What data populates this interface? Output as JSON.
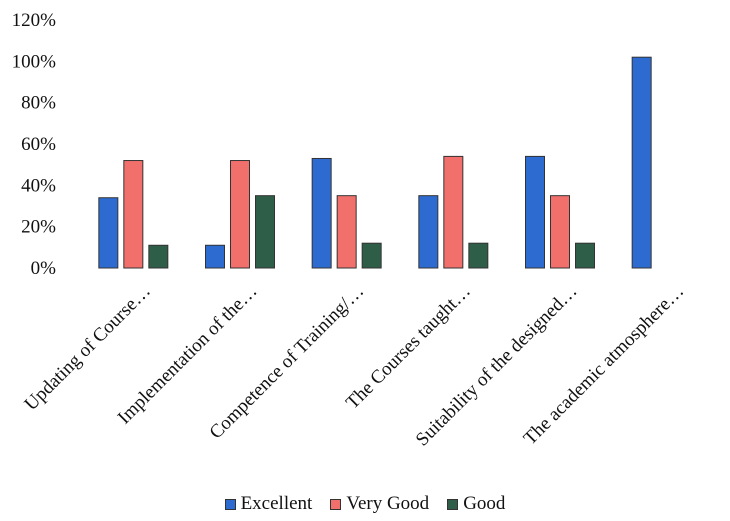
{
  "chart_data": {
    "type": "bar",
    "title": "",
    "xlabel": "",
    "ylabel": "",
    "ylim": [
      0,
      120
    ],
    "yticks": [
      "0%",
      "20%",
      "40%",
      "60%",
      "80%",
      "100%",
      "120%"
    ],
    "grid": false,
    "legend_position": "bottom",
    "categories": [
      "Updating of Course…",
      "Implementation of the…",
      "Competence of Training/…",
      "The Courses taught…",
      "Suitability of the designed…",
      "The academic atmosphere…"
    ],
    "series": [
      {
        "name": "Excellent",
        "color": "#2e6bd1",
        "values": [
          34,
          11,
          53,
          35,
          54,
          102
        ]
      },
      {
        "name": "Very Good",
        "color": "#f2706c",
        "values": [
          52,
          52,
          35,
          54,
          35,
          0
        ]
      },
      {
        "name": "Good",
        "color": "#2f5e48",
        "values": [
          11,
          35,
          12,
          12,
          12,
          0
        ]
      }
    ]
  }
}
